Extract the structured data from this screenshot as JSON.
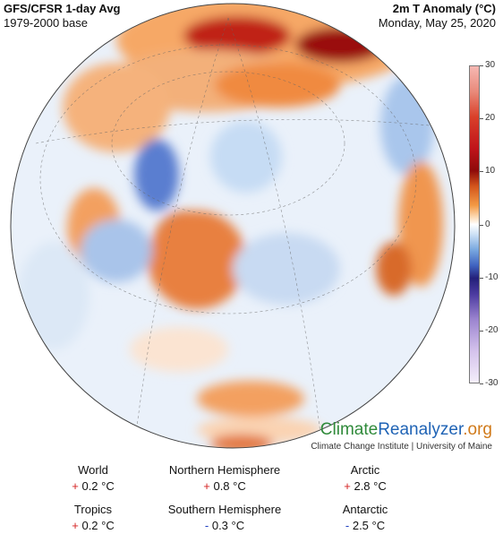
{
  "header": {
    "title_left": "GFS/CFSR 1-day Avg",
    "subtitle_left": "1979-2000 base",
    "title_right": "2m T Anomaly (°C)",
    "subtitle_right": "Monday, May 25, 2020"
  },
  "colorbar": {
    "ticks": [
      "30",
      "20",
      "10",
      "0",
      "-10",
      "-20",
      "-30"
    ],
    "tick_values": [
      30,
      20,
      10,
      0,
      -10,
      -20,
      -30
    ],
    "colors": {
      "warm_extreme": "#f6b8b3",
      "warm": "#c0141a",
      "neutral": "#ffffff",
      "cold": "#24207a",
      "cold_extreme": "#f4eefa"
    }
  },
  "brand": {
    "part1": "Climate",
    "part2": "Reanalyzer",
    "part3": ".org",
    "institution": "Climate Change Institute | University of Maine"
  },
  "stats": [
    {
      "label": "World",
      "sign": "+",
      "value": "0.2 °C"
    },
    {
      "label": "Northern Hemisphere",
      "sign": "+",
      "value": "0.8 °C"
    },
    {
      "label": "Arctic",
      "sign": "+",
      "value": "2.8 °C"
    },
    {
      "label": "Tropics",
      "sign": "+",
      "value": "0.2 °C"
    },
    {
      "label": "Southern Hemisphere",
      "sign": "-",
      "value": "0.3 °C"
    },
    {
      "label": "Antarctic",
      "sign": "-",
      "value": "2.5 °C"
    }
  ]
}
